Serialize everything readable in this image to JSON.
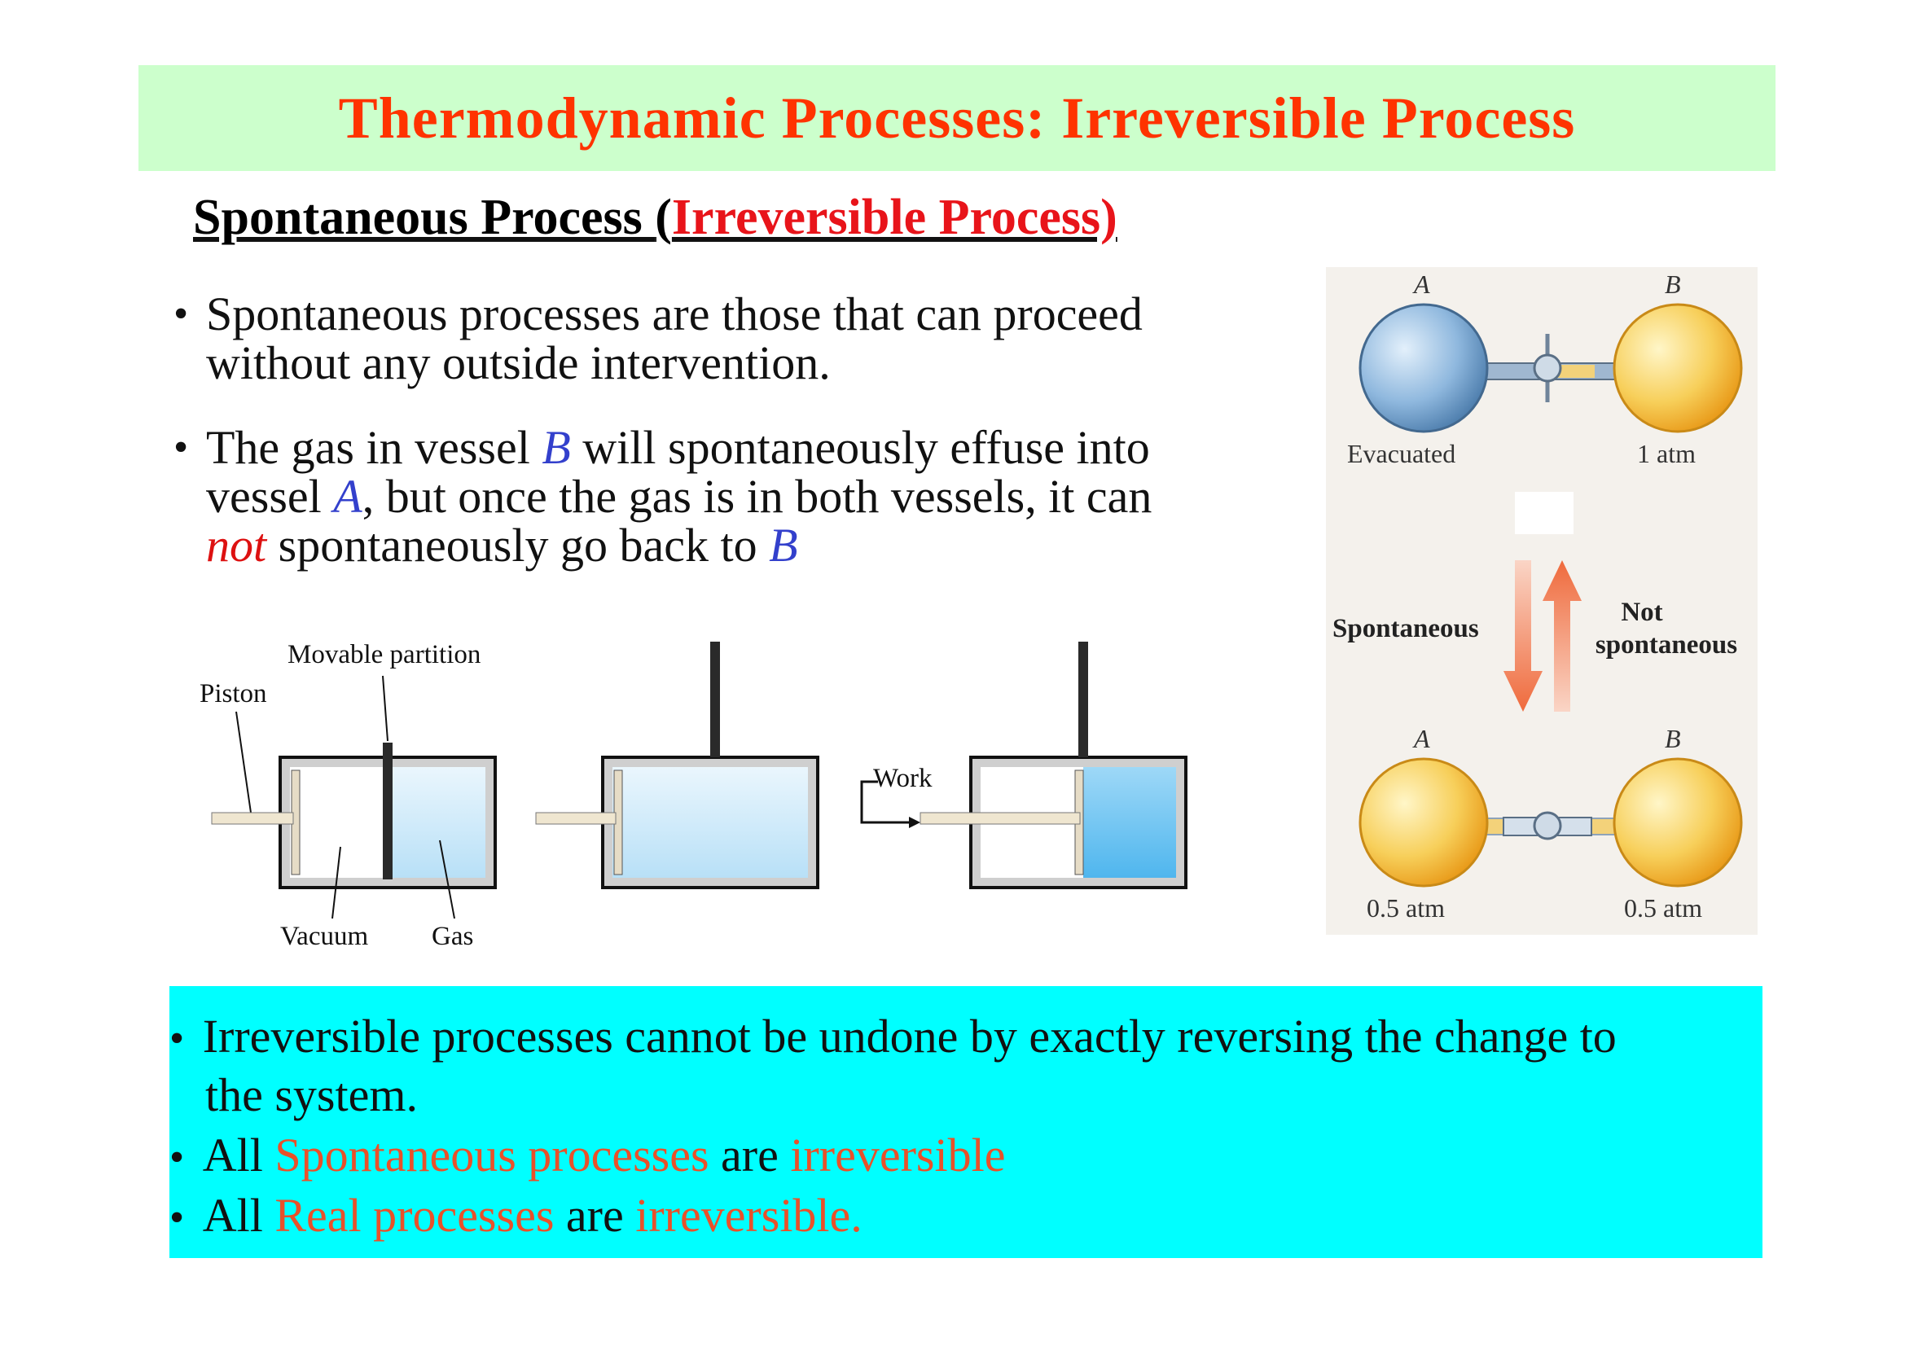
{
  "title": "Thermodynamic Processes: Irreversible Process",
  "subheading": {
    "part1": "Spontaneous Process ",
    "paren": "(",
    "part2": "Irreversible Process)"
  },
  "bullets": {
    "b1_line1": "Spontaneous processes are those that can proceed",
    "b1_line2": "without any outside intervention.",
    "b2_line1_a": "The gas in vessel ",
    "b2_line1_b": "B",
    "b2_line1_c": " will spontaneously effuse into",
    "b2_line2_a": "vessel ",
    "b2_line2_b": "A",
    "b2_line2_c": ", but once the gas is in both vessels, it can",
    "b2_line3_a": "not",
    "b2_line3_b": " spontaneously go back to ",
    "b2_line3_c": "B",
    "bullet_char": "•"
  },
  "piston_diagram": {
    "movable_partition": "Movable partition",
    "piston": "Piston",
    "vacuum": "Vacuum",
    "gas": "Gas",
    "work": "Work"
  },
  "flask_diagram": {
    "top_a": "A",
    "top_b": "B",
    "evacuated": "Evacuated",
    "one_atm": "1 atm",
    "spontaneous": "Spontaneous",
    "not": "Not",
    "spontaneous2": "spontaneous",
    "bottom_a": "A",
    "bottom_b": "B",
    "half_atm_a": "0.5 atm",
    "half_atm_b": "0.5 atm"
  },
  "summary": {
    "l1": "Irreversible processes cannot be undone by exactly reversing the change  to",
    "l2": "the system.",
    "l3_a": "All ",
    "l3_b": "Spontaneous processes",
    "l3_c": " are ",
    "l3_d": "irreversible",
    "l4_a": "All ",
    "l4_b": "Real processes",
    "l4_c": " are ",
    "l4_d": "irreversible."
  },
  "colors": {
    "title": "#ff3300",
    "title_bg": "#ccffcc",
    "summary_bg": "#00ffff",
    "highlight": "#e8512a",
    "vessel_blue": "#3340cc"
  }
}
